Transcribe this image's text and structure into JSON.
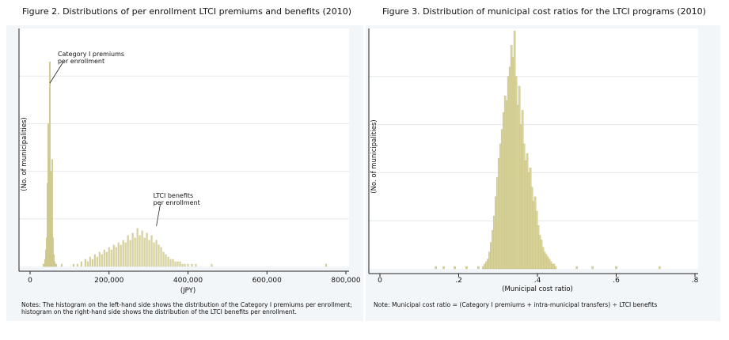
{
  "figures": {
    "left": {
      "title": "Figure 2. Distributions of per enrollment LTCI premiums and benefits (2010)",
      "note": "Notes: The histogram on the left-hand side shows the distribution of the Category I premiums per enrollment; histogram on the right-hand side shows the distribution of the LTCI benefits per enrollment."
    },
    "right": {
      "title": "Figure 3. Distribution of municipal cost ratios for the LTCI programs (2010)",
      "note": "Note: Municipal cost ratio = (Category I premiums + intra-municipal transfers) ÷ LTCI benefits"
    }
  },
  "chart_data": [
    {
      "type": "bar",
      "subtype": "histogram",
      "xlabel": "(JPY)",
      "ylabel": "(No. of municipalities)",
      "xlim": [
        0,
        800000
      ],
      "ylim": [
        0,
        100
      ],
      "xticks": [
        0,
        200000,
        400000,
        600000,
        800000
      ],
      "xtick_labels": [
        "0",
        "200,000",
        "400,000",
        "600,000",
        "800,000"
      ],
      "grid": true,
      "bar_color": "#d9d49a",
      "bar_edge_color": "#b8b070",
      "annotations": [
        {
          "text": "Category I premiums",
          "text2": "per enrollment",
          "x": 50000,
          "y": 77
        },
        {
          "text": "LTCI benefits",
          "text2": "per enrollment",
          "x": 320000,
          "y": 17
        }
      ],
      "bins": [
        [
          34000,
          1
        ],
        [
          36000,
          1
        ],
        [
          38000,
          3
        ],
        [
          40000,
          7
        ],
        [
          42000,
          12
        ],
        [
          44000,
          35
        ],
        [
          46000,
          60
        ],
        [
          48000,
          45
        ],
        [
          50000,
          86
        ],
        [
          52000,
          40
        ],
        [
          54000,
          20
        ],
        [
          56000,
          45
        ],
        [
          58000,
          12
        ],
        [
          60000,
          5
        ],
        [
          62000,
          2
        ],
        [
          64000,
          1
        ],
        [
          66000,
          1
        ],
        [
          80000,
          1
        ],
        [
          110000,
          1
        ],
        [
          120000,
          1
        ],
        [
          130000,
          2
        ],
        [
          140000,
          3
        ],
        [
          146000,
          2
        ],
        [
          152000,
          4
        ],
        [
          158000,
          3
        ],
        [
          164000,
          5
        ],
        [
          170000,
          4
        ],
        [
          176000,
          6
        ],
        [
          182000,
          5
        ],
        [
          188000,
          7
        ],
        [
          194000,
          6
        ],
        [
          200000,
          8
        ],
        [
          206000,
          7
        ],
        [
          212000,
          9
        ],
        [
          218000,
          8
        ],
        [
          224000,
          10
        ],
        [
          230000,
          9
        ],
        [
          236000,
          11
        ],
        [
          242000,
          10
        ],
        [
          248000,
          13
        ],
        [
          254000,
          11
        ],
        [
          260000,
          14
        ],
        [
          266000,
          12
        ],
        [
          272000,
          16
        ],
        [
          278000,
          13
        ],
        [
          284000,
          15
        ],
        [
          290000,
          12
        ],
        [
          296000,
          14
        ],
        [
          302000,
          11
        ],
        [
          308000,
          13
        ],
        [
          314000,
          10
        ],
        [
          320000,
          11
        ],
        [
          326000,
          9
        ],
        [
          332000,
          8
        ],
        [
          338000,
          6
        ],
        [
          344000,
          5
        ],
        [
          350000,
          4
        ],
        [
          356000,
          3
        ],
        [
          362000,
          3
        ],
        [
          368000,
          2
        ],
        [
          374000,
          2
        ],
        [
          380000,
          2
        ],
        [
          386000,
          1
        ],
        [
          392000,
          1
        ],
        [
          400000,
          1
        ],
        [
          410000,
          1
        ],
        [
          420000,
          1
        ],
        [
          460000,
          1
        ],
        [
          750000,
          1
        ]
      ]
    },
    {
      "type": "bar",
      "subtype": "histogram",
      "xlabel": "(Municipal cost ratio)",
      "ylabel": "(No. of municipalities)",
      "xlim": [
        0,
        0.8
      ],
      "ylim": [
        0,
        100
      ],
      "xticks": [
        0,
        0.2,
        0.4,
        0.6,
        0.8
      ],
      "xtick_labels": [
        "0",
        ".2",
        ".4",
        ".6",
        ".8"
      ],
      "grid": true,
      "bar_color": "#d9d49a",
      "bar_edge_color": "#b8b070",
      "bins": [
        [
          0.142,
          1
        ],
        [
          0.162,
          1
        ],
        [
          0.19,
          1
        ],
        [
          0.22,
          1
        ],
        [
          0.25,
          1
        ],
        [
          0.262,
          1
        ],
        [
          0.266,
          2
        ],
        [
          0.27,
          3
        ],
        [
          0.274,
          4
        ],
        [
          0.278,
          7
        ],
        [
          0.282,
          11
        ],
        [
          0.286,
          16
        ],
        [
          0.29,
          22
        ],
        [
          0.294,
          30
        ],
        [
          0.298,
          38
        ],
        [
          0.302,
          46
        ],
        [
          0.306,
          52
        ],
        [
          0.31,
          58
        ],
        [
          0.314,
          65
        ],
        [
          0.318,
          72
        ],
        [
          0.322,
          70
        ],
        [
          0.326,
          80
        ],
        [
          0.33,
          84
        ],
        [
          0.334,
          93
        ],
        [
          0.338,
          88
        ],
        [
          0.342,
          99
        ],
        [
          0.346,
          80
        ],
        [
          0.35,
          68
        ],
        [
          0.354,
          76
        ],
        [
          0.358,
          60
        ],
        [
          0.362,
          66
        ],
        [
          0.366,
          52
        ],
        [
          0.37,
          45
        ],
        [
          0.374,
          48
        ],
        [
          0.378,
          40
        ],
        [
          0.382,
          42
        ],
        [
          0.386,
          34
        ],
        [
          0.39,
          28
        ],
        [
          0.394,
          30
        ],
        [
          0.398,
          24
        ],
        [
          0.402,
          18
        ],
        [
          0.406,
          14
        ],
        [
          0.41,
          12
        ],
        [
          0.414,
          9
        ],
        [
          0.418,
          7
        ],
        [
          0.422,
          6
        ],
        [
          0.426,
          5
        ],
        [
          0.43,
          4
        ],
        [
          0.434,
          3
        ],
        [
          0.438,
          2
        ],
        [
          0.442,
          2
        ],
        [
          0.446,
          1
        ],
        [
          0.5,
          1
        ],
        [
          0.54,
          1
        ],
        [
          0.6,
          1
        ],
        [
          0.71,
          1
        ]
      ]
    }
  ]
}
